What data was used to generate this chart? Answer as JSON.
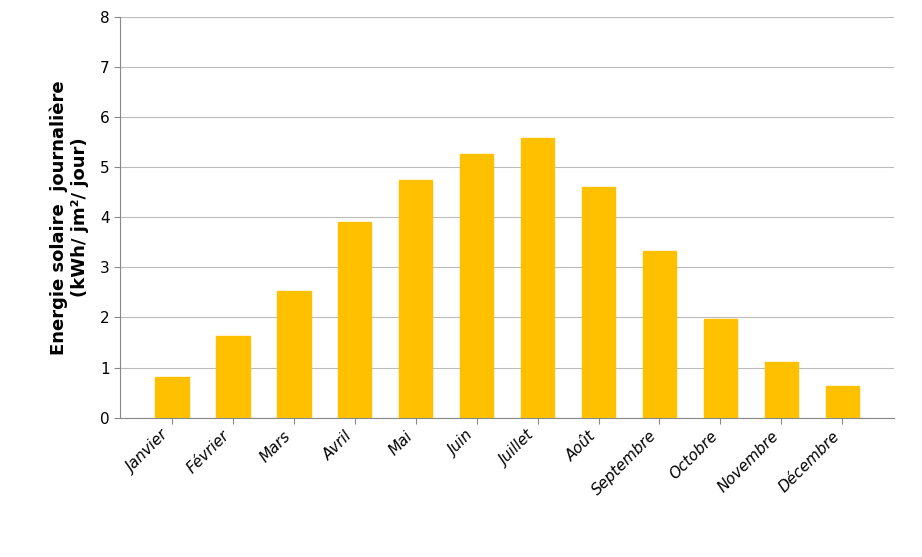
{
  "categories": [
    "Janvier",
    "Février",
    "Mars",
    "Avril",
    "Mai",
    "Juin",
    "Juillet",
    "Août",
    "Septembre",
    "Octobre",
    "Novembre",
    "Décembre"
  ],
  "values": [
    0.82,
    1.63,
    2.53,
    3.9,
    4.75,
    5.27,
    5.58,
    4.6,
    3.32,
    1.97,
    1.12,
    0.63
  ],
  "bar_color": "#FFC000",
  "ylabel_line1": "Energie solaire  journalière",
  "ylabel_line2": "(kWh/ jm²/ jour)",
  "ylim": [
    0,
    8
  ],
  "yticks": [
    0,
    1,
    2,
    3,
    4,
    5,
    6,
    7,
    8
  ],
  "background_color": "#ffffff",
  "grid_color": "#bbbbbb",
  "ylabel_fontsize": 13,
  "tick_fontsize": 11,
  "bar_width": 0.55
}
